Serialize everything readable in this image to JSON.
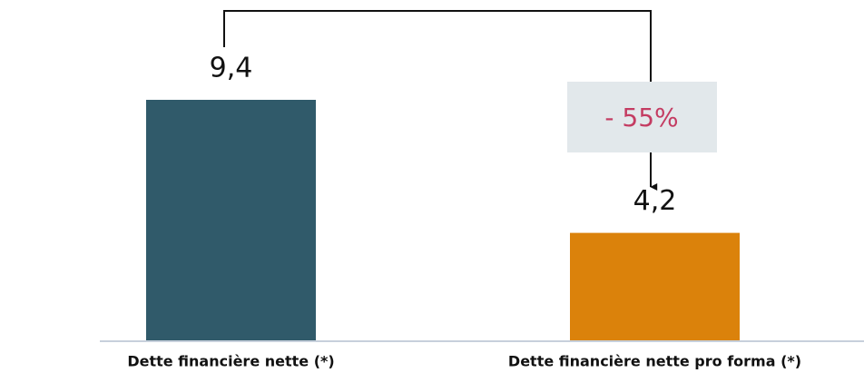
{
  "chart_data": {
    "type": "bar",
    "categories": [
      "Dette financière nette (*)",
      "Dette financière nette pro forma (*)"
    ],
    "values": [
      9.4,
      4.2
    ],
    "value_labels": [
      "9,4",
      "4,2"
    ],
    "colors": [
      "#305a6a",
      "#db820b"
    ],
    "annotation": "- 55%"
  }
}
